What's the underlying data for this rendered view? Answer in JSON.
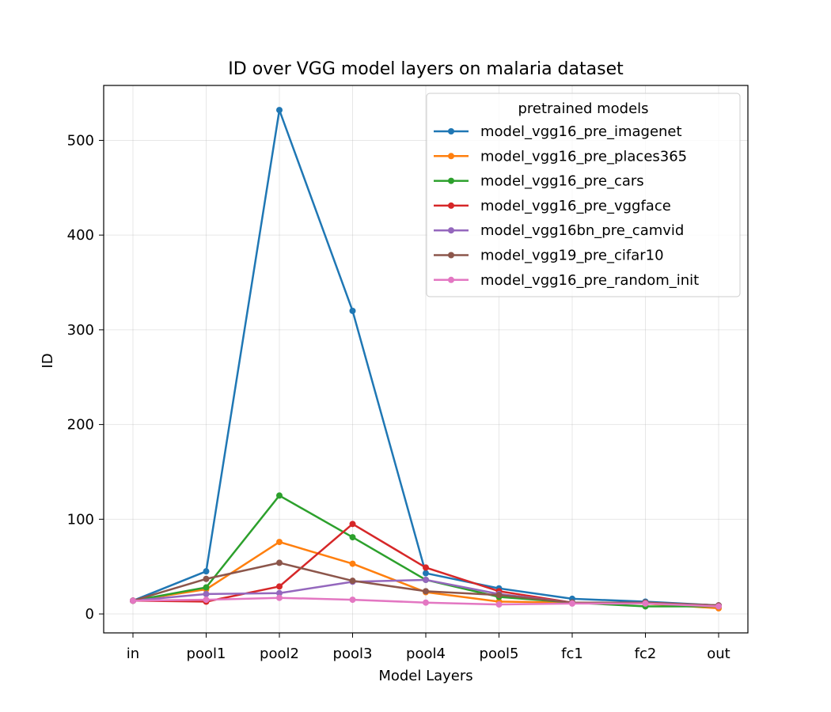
{
  "chart_data": {
    "type": "line",
    "title": "ID over VGG model layers on malaria dataset",
    "xlabel": "Model Layers",
    "ylabel": "ID",
    "categories": [
      "in",
      "pool1",
      "pool2",
      "pool3",
      "pool4",
      "pool5",
      "fc1",
      "fc2",
      "out"
    ],
    "yticks": [
      0,
      100,
      200,
      300,
      400,
      500
    ],
    "ylim": [
      -20,
      558
    ],
    "grid": true,
    "legend": {
      "title": "pretrained models",
      "position": "top-right"
    },
    "series": [
      {
        "name": "model_vgg16_pre_imagenet",
        "color": "#1f77b4",
        "values": [
          14,
          45,
          532,
          320,
          43,
          27,
          16,
          13,
          9
        ]
      },
      {
        "name": "model_vgg16_pre_places365",
        "color": "#ff7f0e",
        "values": [
          14,
          26,
          76,
          53,
          23,
          13,
          12,
          11,
          6
        ]
      },
      {
        "name": "model_vgg16_pre_cars",
        "color": "#2ca02c",
        "values": [
          14,
          28,
          125,
          81,
          36,
          18,
          12,
          8,
          8
        ]
      },
      {
        "name": "model_vgg16_pre_vggface",
        "color": "#d62728",
        "values": [
          14,
          13,
          29,
          95,
          49,
          24,
          12,
          12,
          9
        ]
      },
      {
        "name": "model_vgg16bn_pre_camvid",
        "color": "#9467bd",
        "values": [
          14,
          21,
          22,
          34,
          36,
          21,
          12,
          12,
          9
        ]
      },
      {
        "name": "model_vgg19_pre_cifar10",
        "color": "#8c564b",
        "values": [
          14,
          37,
          54,
          35,
          24,
          20,
          12,
          12,
          9
        ]
      },
      {
        "name": "model_vgg16_pre_random_init",
        "color": "#e377c2",
        "values": [
          14,
          15,
          17,
          15,
          12,
          10,
          11,
          11,
          8
        ]
      }
    ]
  }
}
